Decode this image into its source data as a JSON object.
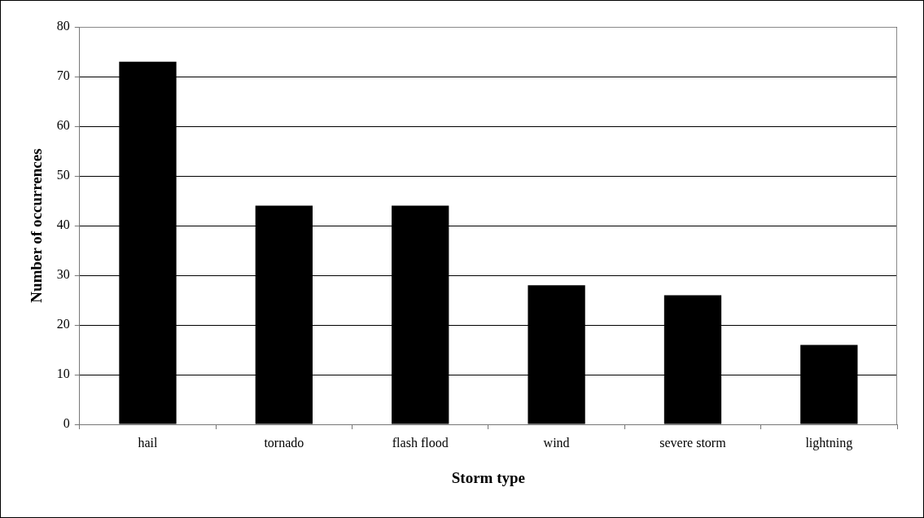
{
  "chart_data": {
    "type": "bar",
    "xlabel": "Storm type",
    "ylabel": "Number of occurrences",
    "categories": [
      "hail",
      "tornado",
      "flash flood",
      "wind",
      "severe storm",
      "lightning"
    ],
    "values": [
      73,
      44,
      44,
      28,
      26,
      16
    ],
    "color": "#000000",
    "ylim": [
      0,
      80
    ],
    "yticks": [
      0,
      10,
      20,
      30,
      40,
      50,
      60,
      70,
      80
    ],
    "grid": "y",
    "legend": false
  }
}
